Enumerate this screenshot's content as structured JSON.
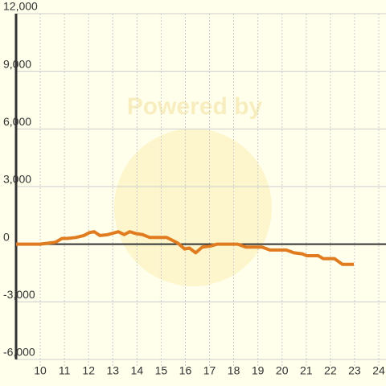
{
  "chart_data": {
    "type": "line",
    "watermark": "Powered by",
    "x": [
      9.0,
      10,
      10.63,
      10.9,
      11.13,
      11.47,
      11.8,
      12.03,
      12.23,
      12.47,
      12.8,
      13.23,
      13.47,
      13.7,
      13.97,
      14.23,
      14.53,
      15.23,
      15.47,
      15.7,
      15.97,
      16.17,
      16.43,
      16.7,
      17.03,
      17.3,
      18.17,
      18.5,
      19.17,
      19.5,
      20.17,
      20.5,
      20.83,
      21.03,
      21.5,
      21.7,
      22.17,
      22.5,
      22.97
    ],
    "series": [
      {
        "color": "#e07b20",
        "values": [
          0,
          0,
          100,
          300,
          300,
          350,
          450,
          600,
          650,
          450,
          500,
          650,
          500,
          650,
          550,
          500,
          350,
          350,
          200,
          50,
          -250,
          -200,
          -450,
          -150,
          -100,
          0,
          0,
          -150,
          -150,
          -300,
          -300,
          -450,
          -500,
          -600,
          -600,
          -750,
          -750,
          -1050,
          -1050
        ]
      }
    ],
    "xlim": [
      9,
      24.3
    ],
    "xticks": [
      10,
      11,
      12,
      13,
      14,
      15,
      16,
      17,
      18,
      19,
      20,
      21,
      22,
      23,
      24
    ],
    "ylim": [
      -6000,
      12000
    ],
    "yticks": [
      {
        "value": 12000,
        "label": "12,000"
      },
      {
        "value": 9000,
        "label": "9,000"
      },
      {
        "value": 6000,
        "label": "6,000"
      },
      {
        "value": 3000,
        "label": "3,000"
      },
      0,
      {
        "value": -3000,
        "label": "-3,000"
      },
      {
        "value": -6000,
        "label": "-6,000"
      }
    ],
    "grid": true
  }
}
